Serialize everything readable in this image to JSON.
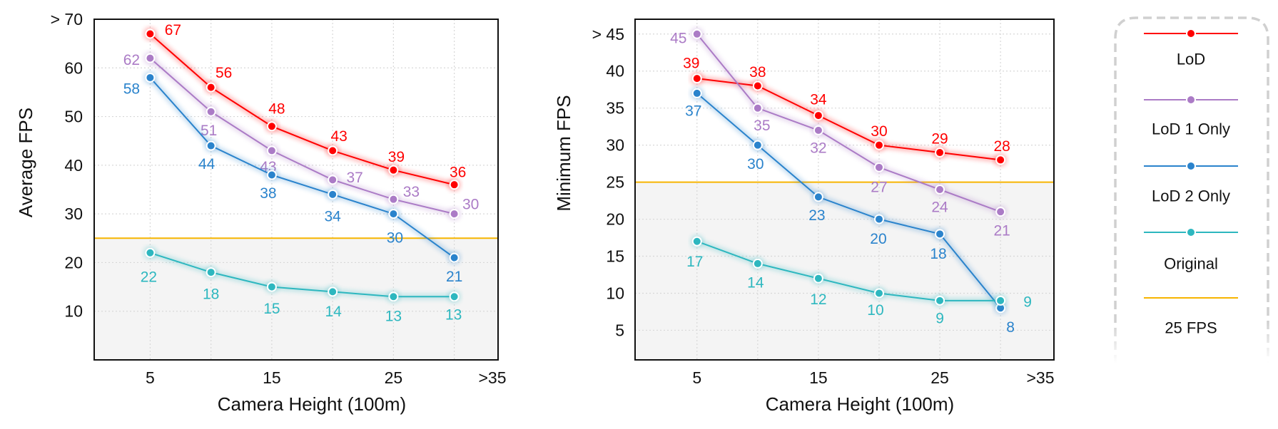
{
  "chart_data": [
    {
      "type": "line",
      "title": "",
      "xlabel": "Camera Height (100m)",
      "ylabel": "Average FPS",
      "x": [
        5,
        10,
        15,
        20,
        25,
        30
      ],
      "xtick_labels": [
        "5",
        "15",
        "25",
        ">35"
      ],
      "xtick_values": [
        5,
        15,
        25,
        35
      ],
      "ytick_labels": [
        "> 70",
        "60",
        "50",
        "40",
        "30",
        "20",
        "10"
      ],
      "ytick_values": [
        70,
        60,
        50,
        40,
        30,
        20,
        10
      ],
      "ylim": [
        0,
        70
      ],
      "grid": true,
      "threshold": {
        "name": "25 FPS",
        "value": 25
      },
      "series": [
        {
          "name": "LoD",
          "color": "#ff0000",
          "values": [
            67,
            56,
            48,
            43,
            39,
            36
          ]
        },
        {
          "name": "LoD 1 Only",
          "color": "#ab7bc6",
          "values": [
            62,
            51,
            43,
            37,
            33,
            30
          ]
        },
        {
          "name": "LoD 2 Only",
          "color": "#2a83cc",
          "values": [
            58,
            44,
            38,
            34,
            30,
            21
          ]
        },
        {
          "name": "Original",
          "color": "#2db7bf",
          "values": [
            22,
            18,
            15,
            14,
            13,
            13
          ]
        }
      ]
    },
    {
      "type": "line",
      "title": "",
      "xlabel": "Camera Height (100m)",
      "ylabel": "Minimum FPS",
      "x": [
        5,
        10,
        15,
        20,
        25,
        30
      ],
      "xtick_labels": [
        "5",
        "15",
        "25",
        ">35"
      ],
      "xtick_values": [
        5,
        15,
        25,
        35
      ],
      "ytick_labels": [
        "> 45",
        "40",
        "35",
        "30",
        "25",
        "20",
        "15",
        "10",
        "5"
      ],
      "ytick_values": [
        45,
        40,
        35,
        30,
        25,
        20,
        15,
        10,
        5
      ],
      "ylim": [
        1,
        47
      ],
      "grid": true,
      "threshold": {
        "name": "25 FPS",
        "value": 25
      },
      "series": [
        {
          "name": "LoD",
          "color": "#ff0000",
          "values": [
            39,
            38,
            34,
            30,
            29,
            28
          ]
        },
        {
          "name": "LoD 1 Only",
          "color": "#ab7bc6",
          "values": [
            45,
            35,
            32,
            27,
            24,
            21
          ]
        },
        {
          "name": "LoD 2 Only",
          "color": "#2a83cc",
          "values": [
            37,
            30,
            23,
            20,
            18,
            8
          ]
        },
        {
          "name": "Original",
          "color": "#2db7bf",
          "values": [
            17,
            14,
            12,
            10,
            9,
            9
          ]
        }
      ]
    }
  ],
  "legend": {
    "placement": "right",
    "items": [
      {
        "label": "LoD",
        "color": "#ff0000",
        "marker": true
      },
      {
        "label": "LoD 1 Only",
        "color": "#ab7bc6",
        "marker": true
      },
      {
        "label": "LoD 2 Only",
        "color": "#2a83cc",
        "marker": true
      },
      {
        "label": "Original",
        "color": "#2db7bf",
        "marker": true
      },
      {
        "label": "25 FPS",
        "color": "#f7b500",
        "marker": false
      }
    ]
  },
  "colors": {
    "below_threshold_fill": "#f4f4f4",
    "grid": "#d8d8d8",
    "frame": "#111111"
  }
}
